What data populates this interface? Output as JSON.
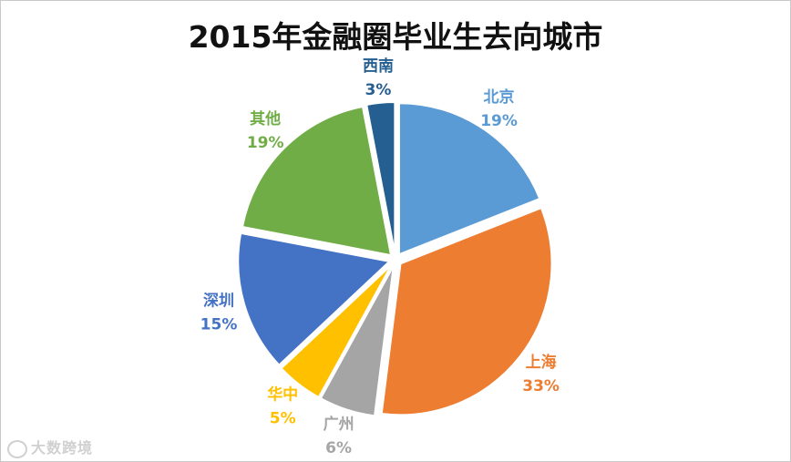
{
  "watermark": {
    "text": "大数跨境"
  },
  "chart_data": {
    "type": "pie",
    "title": "2015年金融圈毕业生去向城市",
    "slices": [
      {
        "label": "北京",
        "value": 19,
        "display": "19%",
        "color": "#5b9bd5"
      },
      {
        "label": "上海",
        "value": 33,
        "display": "33%",
        "color": "#ed7d31"
      },
      {
        "label": "广州",
        "value": 6,
        "display": "6%",
        "color": "#a5a5a5"
      },
      {
        "label": "华中",
        "value": 5,
        "display": "5%",
        "color": "#ffc000"
      },
      {
        "label": "深圳",
        "value": 15,
        "display": "15%",
        "color": "#4472c4"
      },
      {
        "label": "其他",
        "value": 19,
        "display": "19%",
        "color": "#70ad47"
      },
      {
        "label": "西南",
        "value": 3,
        "display": "3%",
        "color": "#255e91"
      }
    ],
    "start_angle_deg": 0,
    "direction": "clockwise",
    "exploded": true,
    "legend": "none",
    "data_labels": "category name and percentage, outside"
  }
}
